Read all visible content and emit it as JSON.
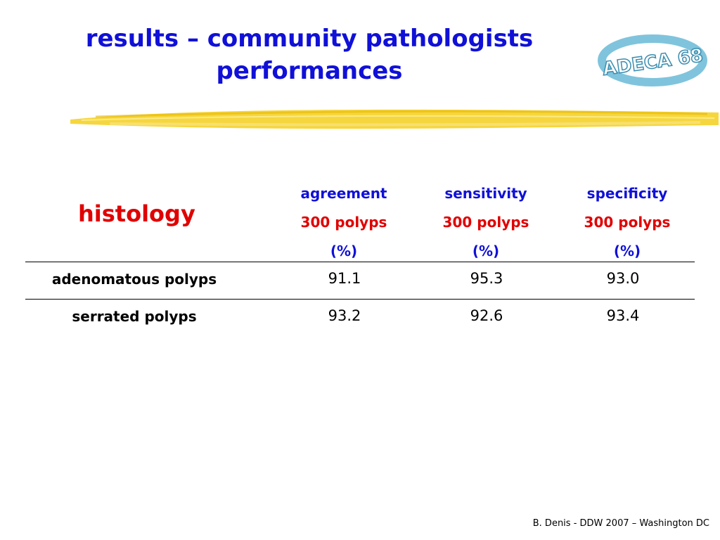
{
  "title": {
    "line1": "results – community pathologists",
    "line2": "performances"
  },
  "logo": {
    "text": "ADECA 68"
  },
  "table": {
    "row_header": "histology",
    "columns": [
      {
        "name": "agreement",
        "sub": "300 polyps",
        "unit": "(%)"
      },
      {
        "name": "sensitivity",
        "sub": "300 polyps",
        "unit": "(%)"
      },
      {
        "name": "specificity",
        "sub": "300 polyps",
        "unit": "(%)"
      }
    ],
    "rows": [
      {
        "label": "adenomatous polyps",
        "values": [
          "91.1",
          "95.3",
          "93.0"
        ]
      },
      {
        "label": "serrated polyps",
        "values": [
          "93.2",
          "92.6",
          "93.4"
        ]
      }
    ]
  },
  "footer": "B. Denis - DDW 2007 – Washington DC",
  "colors": {
    "title": "#1010d8",
    "accent_red": "#e00000",
    "highlight": "#f2cc1a"
  }
}
